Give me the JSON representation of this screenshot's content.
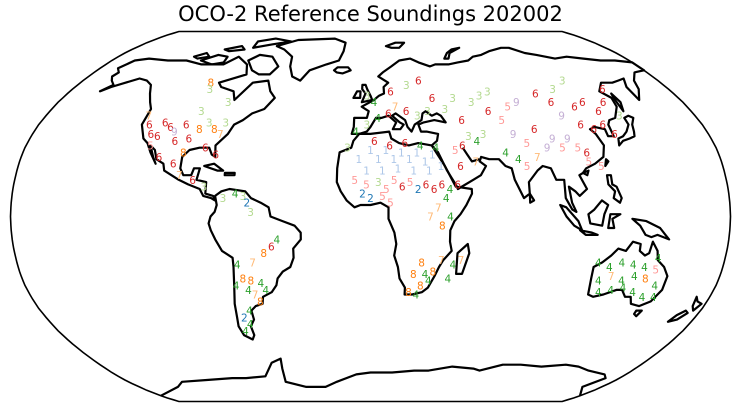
{
  "title": "OCO-2 Reference Soundings 202002",
  "colors": {
    "1": "#aec7e8",
    "2": "#1f77b4",
    "3": "#b3d98f",
    "4": "#2ca02c",
    "5": "#ff9896",
    "6": "#d62728",
    "7": "#ffbb78",
    "8": "#ff7f0e",
    "9": "#c5b0d5"
  },
  "soundings": [
    {
      "lon": -123,
      "lat": 44,
      "label": "7"
    },
    {
      "lon": -120,
      "lat": 40,
      "label": "6"
    },
    {
      "lon": -117,
      "lat": 36,
      "label": "6"
    },
    {
      "lon": -112,
      "lat": 41,
      "label": "6"
    },
    {
      "lon": -108,
      "lat": 39,
      "label": "6"
    },
    {
      "lon": -113,
      "lat": 35,
      "label": "6"
    },
    {
      "lon": -105,
      "lat": 37,
      "label": "9"
    },
    {
      "lon": -100,
      "lat": 40,
      "label": "6"
    },
    {
      "lon": -103,
      "lat": 33,
      "label": "6"
    },
    {
      "lon": -96,
      "lat": 34,
      "label": "6"
    },
    {
      "lon": -92,
      "lat": 38,
      "label": "8"
    },
    {
      "lon": -88,
      "lat": 41,
      "label": "3"
    },
    {
      "lon": -84,
      "lat": 38,
      "label": "8"
    },
    {
      "lon": -80,
      "lat": 36,
      "label": "7"
    },
    {
      "lon": -115,
      "lat": 31,
      "label": "5"
    },
    {
      "lon": -109,
      "lat": 26,
      "label": "6"
    },
    {
      "lon": -101,
      "lat": 23,
      "label": "6"
    },
    {
      "lon": -97,
      "lat": 18,
      "label": "7"
    },
    {
      "lon": -90,
      "lat": 16,
      "label": "6"
    },
    {
      "lon": -84,
      "lat": 13,
      "label": "3"
    },
    {
      "lon": -99,
      "lat": 59,
      "label": "8"
    },
    {
      "lon": -97,
      "lat": 56,
      "label": "3"
    },
    {
      "lon": -82,
      "lat": 50,
      "label": "3"
    },
    {
      "lon": -95,
      "lat": 46,
      "label": "3"
    },
    {
      "lon": -79,
      "lat": 41,
      "label": "3"
    },
    {
      "lon": -86,
      "lat": 30,
      "label": "6"
    },
    {
      "lon": -80,
      "lat": 27,
      "label": "6"
    },
    {
      "lon": -97,
      "lat": 28,
      "label": "8"
    },
    {
      "lon": -74,
      "lat": 8,
      "label": "3"
    },
    {
      "lon": -68,
      "lat": 10,
      "label": "4"
    },
    {
      "lon": -64,
      "lat": 9,
      "label": "3"
    },
    {
      "lon": -62,
      "lat": 6,
      "label": "2"
    },
    {
      "lon": -60,
      "lat": 2,
      "label": "3"
    },
    {
      "lon": -47,
      "lat": -10,
      "label": "4"
    },
    {
      "lon": -50,
      "lat": -13,
      "label": "6"
    },
    {
      "lon": -54,
      "lat": -16,
      "label": "8"
    },
    {
      "lon": -60,
      "lat": -20,
      "label": "7"
    },
    {
      "lon": -68,
      "lat": -21,
      "label": "4"
    },
    {
      "lon": -66,
      "lat": -27,
      "label": "8"
    },
    {
      "lon": -62,
      "lat": -28,
      "label": "8"
    },
    {
      "lon": -57,
      "lat": -29,
      "label": "4"
    },
    {
      "lon": -70,
      "lat": -30,
      "label": "4"
    },
    {
      "lon": -64,
      "lat": -32,
      "label": "4"
    },
    {
      "lon": -61,
      "lat": -34,
      "label": "7"
    },
    {
      "lon": -59,
      "lat": -37,
      "label": "8"
    },
    {
      "lon": -66,
      "lat": -41,
      "label": "4"
    },
    {
      "lon": -70,
      "lat": -44,
      "label": "2"
    },
    {
      "lon": -68,
      "lat": -47,
      "label": "4"
    },
    {
      "lon": -72,
      "lat": -50,
      "label": "4"
    },
    {
      "lon": -55,
      "lat": -32,
      "label": "4"
    },
    {
      "lon": -8,
      "lat": 37,
      "label": "4"
    },
    {
      "lon": -2,
      "lat": 40,
      "label": "3"
    },
    {
      "lon": 4,
      "lat": 43,
      "label": "4"
    },
    {
      "lon": 10,
      "lat": 45,
      "label": "6"
    },
    {
      "lon": 14,
      "lat": 48,
      "label": "7"
    },
    {
      "lon": 20,
      "lat": 46,
      "label": "6"
    },
    {
      "lon": 26,
      "lat": 44,
      "label": "3"
    },
    {
      "lon": 32,
      "lat": 46,
      "label": "3"
    },
    {
      "lon": 12,
      "lat": 55,
      "label": "6"
    },
    {
      "lon": 2,
      "lat": 50,
      "label": "4"
    },
    {
      "lon": -2,
      "lat": 53,
      "label": "3"
    },
    {
      "lon": 22,
      "lat": 58,
      "label": "3"
    },
    {
      "lon": 36,
      "lat": 52,
      "label": "6"
    },
    {
      "lon": 42,
      "lat": 47,
      "label": "3"
    },
    {
      "lon": 48,
      "lat": 52,
      "label": "3"
    },
    {
      "lon": 30,
      "lat": 60,
      "label": "6"
    },
    {
      "lon": -12,
      "lat": 30,
      "label": "3"
    },
    {
      "lon": -6,
      "lat": 25,
      "label": "1"
    },
    {
      "lon": 0,
      "lat": 29,
      "label": "1"
    },
    {
      "lon": 4,
      "lat": 25,
      "label": "1"
    },
    {
      "lon": 8,
      "lat": 29,
      "label": "1"
    },
    {
      "lon": 12,
      "lat": 25,
      "label": "1"
    },
    {
      "lon": 16,
      "lat": 28,
      "label": "1"
    },
    {
      "lon": 20,
      "lat": 25,
      "label": "1"
    },
    {
      "lon": 24,
      "lat": 28,
      "label": "1"
    },
    {
      "lon": 28,
      "lat": 24,
      "label": "1"
    },
    {
      "lon": 32,
      "lat": 27,
      "label": "1"
    },
    {
      "lon": -2,
      "lat": 20,
      "label": "1"
    },
    {
      "lon": 6,
      "lat": 20,
      "label": "1"
    },
    {
      "lon": 14,
      "lat": 21,
      "label": "1"
    },
    {
      "lon": 22,
      "lat": 20,
      "label": "1"
    },
    {
      "lon": 30,
      "lat": 20,
      "label": "1"
    },
    {
      "lon": 36,
      "lat": 22,
      "label": "1"
    },
    {
      "lon": 2,
      "lat": 33,
      "label": "6"
    },
    {
      "lon": 10,
      "lat": 31,
      "label": "6"
    },
    {
      "lon": 18,
      "lat": 32,
      "label": "6"
    },
    {
      "lon": 26,
      "lat": 31,
      "label": "4"
    },
    {
      "lon": 34,
      "lat": 30,
      "label": "4"
    },
    {
      "lon": -8,
      "lat": 16,
      "label": "5"
    },
    {
      "lon": -2,
      "lat": 14,
      "label": "5"
    },
    {
      "lon": 4,
      "lat": 15,
      "label": "3"
    },
    {
      "lon": 8,
      "lat": 12,
      "label": "5"
    },
    {
      "lon": 12,
      "lat": 16,
      "label": "5"
    },
    {
      "lon": 16,
      "lat": 13,
      "label": "6"
    },
    {
      "lon": 20,
      "lat": 15,
      "label": "5"
    },
    {
      "lon": 24,
      "lat": 12,
      "label": "2"
    },
    {
      "lon": 28,
      "lat": 14,
      "label": "6"
    },
    {
      "lon": 32,
      "lat": 12,
      "label": "6"
    },
    {
      "lon": 36,
      "lat": 14,
      "label": "6"
    },
    {
      "lon": 40,
      "lat": 12,
      "label": "4"
    },
    {
      "lon": 44,
      "lat": 14,
      "label": "6"
    },
    {
      "lon": -4,
      "lat": 10,
      "label": "2"
    },
    {
      "lon": 0,
      "lat": 8,
      "label": "2"
    },
    {
      "lon": 6,
      "lat": 9,
      "label": "5"
    },
    {
      "lon": 10,
      "lat": 6,
      "label": "5"
    },
    {
      "lon": 38,
      "lat": 8,
      "label": "4"
    },
    {
      "lon": 34,
      "lat": 4,
      "label": "7"
    },
    {
      "lon": 30,
      "lat": 0,
      "label": "7"
    },
    {
      "lon": 36,
      "lat": -4,
      "label": "8"
    },
    {
      "lon": 40,
      "lat": 0,
      "label": "4"
    },
    {
      "lon": 26,
      "lat": -20,
      "label": "8"
    },
    {
      "lon": 22,
      "lat": -25,
      "label": "8"
    },
    {
      "lon": 28,
      "lat": -25,
      "label": "4"
    },
    {
      "lon": 32,
      "lat": -24,
      "label": "8"
    },
    {
      "lon": 30,
      "lat": -28,
      "label": "4"
    },
    {
      "lon": 26,
      "lat": -30,
      "label": "8"
    },
    {
      "lon": 36,
      "lat": -19,
      "label": "7"
    },
    {
      "lon": 42,
      "lat": -21,
      "label": "4"
    },
    {
      "lon": 46,
      "lat": -19,
      "label": "7"
    },
    {
      "lon": 40,
      "lat": -27,
      "label": "4"
    },
    {
      "lon": 24,
      "lat": -34,
      "label": "4"
    },
    {
      "lon": 20,
      "lat": -33,
      "label": "8"
    },
    {
      "lon": 44,
      "lat": 29,
      "label": "5"
    },
    {
      "lon": 48,
      "lat": 31,
      "label": "6"
    },
    {
      "lon": 52,
      "lat": 35,
      "label": "3"
    },
    {
      "lon": 56,
      "lat": 33,
      "label": "4"
    },
    {
      "lon": 60,
      "lat": 36,
      "label": "3"
    },
    {
      "lon": 46,
      "lat": 22,
      "label": "6"
    },
    {
      "lon": 54,
      "lat": 24,
      "label": "7"
    },
    {
      "lon": 50,
      "lat": 42,
      "label": "6"
    },
    {
      "lon": 58,
      "lat": 50,
      "label": "3"
    },
    {
      "lon": 64,
      "lat": 53,
      "label": "3"
    },
    {
      "lon": 70,
      "lat": 55,
      "label": "3"
    },
    {
      "lon": 66,
      "lat": 46,
      "label": "6"
    },
    {
      "lon": 72,
      "lat": 42,
      "label": "5"
    },
    {
      "lon": 78,
      "lat": 48,
      "label": "5"
    },
    {
      "lon": 84,
      "lat": 50,
      "label": "9"
    },
    {
      "lon": 76,
      "lat": 36,
      "label": "9"
    },
    {
      "lon": 82,
      "lat": 32,
      "label": "5"
    },
    {
      "lon": 88,
      "lat": 38,
      "label": "6"
    },
    {
      "lon": 70,
      "lat": 28,
      "label": "4"
    },
    {
      "lon": 76,
      "lat": 25,
      "label": "4"
    },
    {
      "lon": 80,
      "lat": 22,
      "label": "5"
    },
    {
      "lon": 86,
      "lat": 26,
      "label": "7"
    },
    {
      "lon": 92,
      "lat": 30,
      "label": "9"
    },
    {
      "lon": 96,
      "lat": 34,
      "label": "9"
    },
    {
      "lon": 100,
      "lat": 30,
      "label": "5"
    },
    {
      "lon": 104,
      "lat": 34,
      "label": "9"
    },
    {
      "lon": 108,
      "lat": 30,
      "label": "5"
    },
    {
      "lon": 112,
      "lat": 28,
      "label": "6"
    },
    {
      "lon": 98,
      "lat": 54,
      "label": "6"
    },
    {
      "lon": 104,
      "lat": 50,
      "label": "6"
    },
    {
      "lon": 110,
      "lat": 56,
      "label": "3"
    },
    {
      "lon": 116,
      "lat": 48,
      "label": "6"
    },
    {
      "lon": 122,
      "lat": 50,
      "label": "6"
    },
    {
      "lon": 128,
      "lat": 46,
      "label": "6"
    },
    {
      "lon": 134,
      "lat": 50,
      "label": "6"
    },
    {
      "lon": 140,
      "lat": 56,
      "label": "6"
    },
    {
      "lon": 120,
      "lat": 60,
      "label": "3"
    },
    {
      "lon": 106,
      "lat": 44,
      "label": "9"
    },
    {
      "lon": 114,
      "lat": 40,
      "label": "6"
    },
    {
      "lon": 120,
      "lat": 38,
      "label": "6"
    },
    {
      "lon": 126,
      "lat": 40,
      "label": "6"
    },
    {
      "lon": 130,
      "lat": 36,
      "label": "6"
    },
    {
      "lon": 112,
      "lat": 24,
      "label": "5"
    },
    {
      "lon": 118,
      "lat": 22,
      "label": "5"
    },
    {
      "lon": 138,
      "lat": 44,
      "label": "3"
    },
    {
      "lon": 116,
      "lat": -20,
      "label": "4"
    },
    {
      "lon": 122,
      "lat": -22,
      "label": "4"
    },
    {
      "lon": 128,
      "lat": -20,
      "label": "4"
    },
    {
      "lon": 134,
      "lat": -21,
      "label": "4"
    },
    {
      "lon": 140,
      "lat": -22,
      "label": "4"
    },
    {
      "lon": 118,
      "lat": -28,
      "label": "4"
    },
    {
      "lon": 124,
      "lat": -26,
      "label": "7"
    },
    {
      "lon": 130,
      "lat": -28,
      "label": "4"
    },
    {
      "lon": 136,
      "lat": -26,
      "label": "4"
    },
    {
      "lon": 142,
      "lat": -27,
      "label": "8"
    },
    {
      "lon": 146,
      "lat": -23,
      "label": "5"
    },
    {
      "lon": 148,
      "lat": -30,
      "label": "4"
    },
    {
      "lon": 120,
      "lat": -33,
      "label": "4"
    },
    {
      "lon": 126,
      "lat": -32,
      "label": "4"
    },
    {
      "lon": 132,
      "lat": -31,
      "label": "4"
    },
    {
      "lon": 138,
      "lat": -33,
      "label": "4"
    },
    {
      "lon": 144,
      "lat": -35,
      "label": "4"
    },
    {
      "lon": 150,
      "lat": -35,
      "label": "4"
    },
    {
      "lon": 146,
      "lat": -18,
      "label": "4"
    }
  ]
}
